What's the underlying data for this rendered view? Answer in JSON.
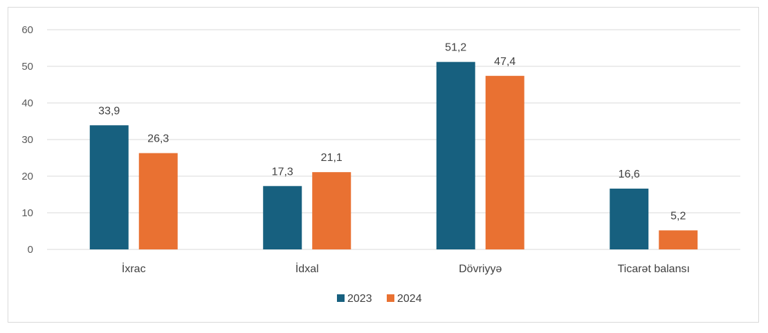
{
  "chart_data": {
    "type": "bar",
    "categories": [
      "İxrac",
      "İdxal",
      "Dövriyyə",
      "Ticarət balansı"
    ],
    "series": [
      {
        "name": "2023",
        "values": [
          33.9,
          17.3,
          51.2,
          16.6
        ],
        "labels": [
          "33,9",
          "17,3",
          "51,2",
          "16,6"
        ],
        "color": "#17607f"
      },
      {
        "name": "2024",
        "values": [
          26.3,
          21.1,
          47.4,
          5.2
        ],
        "labels": [
          "26,3",
          "21,1",
          "47,4",
          "5,2"
        ],
        "color": "#e97132"
      }
    ],
    "title": "",
    "xlabel": "",
    "ylabel": "",
    "ylim": [
      0,
      60
    ],
    "yticks": [
      0,
      10,
      20,
      30,
      40,
      50,
      60
    ],
    "grid": true,
    "legend": "bottom"
  }
}
